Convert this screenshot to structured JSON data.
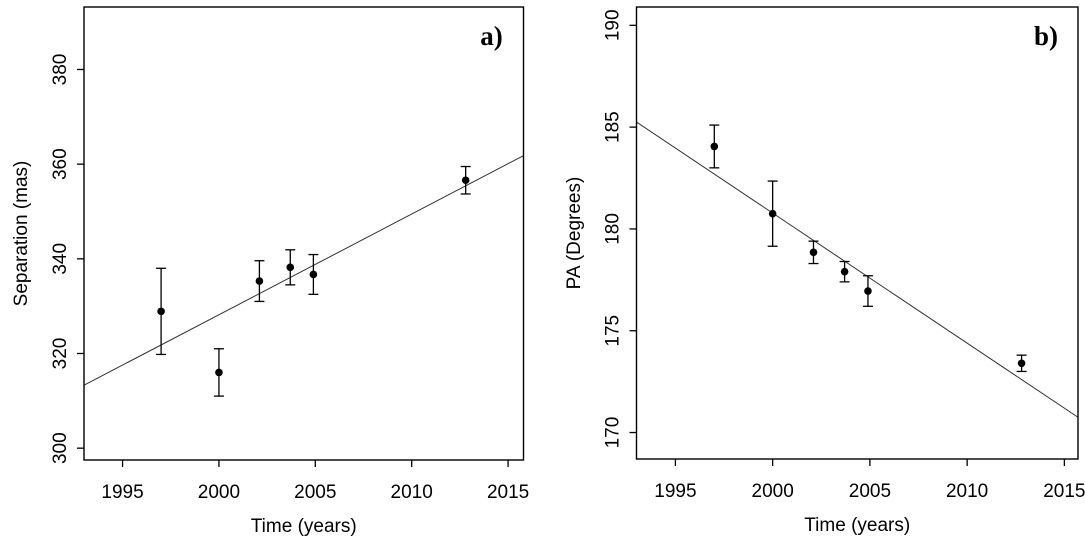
{
  "figure": {
    "background": "#ffffff",
    "foreground": "#000000",
    "marker_color": "#000000",
    "line_color": "#333333"
  },
  "chart_data": [
    {
      "type": "scatter",
      "panel_label": "a)",
      "xlabel": "Time (years)",
      "ylabel": "Separation (mas)",
      "xlim": [
        1993.0,
        2015.8
      ],
      "ylim": [
        297.5,
        393.2
      ],
      "xticks": [
        1995,
        2000,
        2005,
        2010,
        2015
      ],
      "yticks": [
        300,
        320,
        340,
        360,
        380
      ],
      "grid": false,
      "legend": "none",
      "marker": "filled-circle",
      "series": [
        {
          "name": "separation-measurements",
          "x": [
            1997.0,
            2000.0,
            2002.1,
            2003.7,
            2004.9,
            2012.8
          ],
          "y": [
            328.9,
            316.0,
            335.3,
            338.2,
            336.7,
            356.6
          ],
          "yerr": [
            9.1,
            5.0,
            4.3,
            3.7,
            4.2,
            2.9
          ]
        }
      ],
      "fit_line": {
        "x": [
          1993.0,
          2015.8
        ],
        "y": [
          313.3,
          361.8
        ]
      }
    },
    {
      "type": "scatter",
      "panel_label": "b)",
      "xlabel": "Time (years)",
      "ylabel": "PA (Degrees)",
      "xlim": [
        1993.0,
        2015.7
      ],
      "ylim": [
        168.7,
        190.9
      ],
      "xticks": [
        1995,
        2000,
        2005,
        2010,
        2015
      ],
      "yticks": [
        170,
        175,
        180,
        185,
        190
      ],
      "grid": false,
      "legend": "none",
      "marker": "filled-circle",
      "series": [
        {
          "name": "pa-measurements",
          "x": [
            1997.0,
            2000.0,
            2002.1,
            2003.7,
            2004.9,
            2012.8
          ],
          "y": [
            184.05,
            180.75,
            178.85,
            177.9,
            176.95,
            173.4
          ],
          "yerr": [
            1.05,
            1.6,
            0.55,
            0.5,
            0.75,
            0.4
          ]
        }
      ],
      "fit_line": {
        "x": [
          1993.0,
          2015.7
        ],
        "y": [
          185.25,
          170.75
        ]
      }
    }
  ]
}
